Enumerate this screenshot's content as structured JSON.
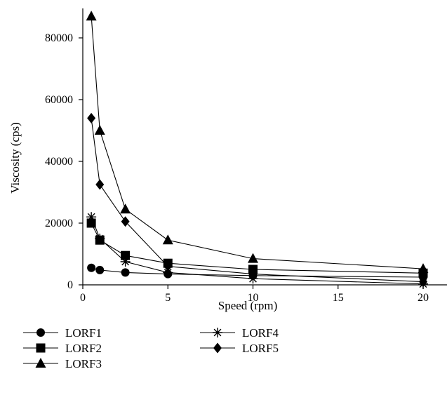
{
  "chart_data": {
    "type": "line",
    "title": "",
    "xlabel": "Speed (rpm)",
    "ylabel": "Viscosity (cps)",
    "xlim": [
      0,
      23
    ],
    "ylim": [
      0,
      88000
    ],
    "xticks": [
      "0",
      "5",
      "10",
      "15",
      "20"
    ],
    "yticks": [
      "0",
      "20000",
      "40000",
      "60000",
      "80000"
    ],
    "grid": false,
    "legend_position": "bottom",
    "x": [
      0.5,
      1,
      2.5,
      5,
      10,
      20
    ],
    "series": [
      {
        "name": "LORF1",
        "marker": "circle",
        "values": [
          5500,
          4800,
          4000,
          3500,
          3000,
          2500
        ]
      },
      {
        "name": "LORF2",
        "marker": "square",
        "values": [
          20000,
          14500,
          9500,
          7000,
          5000,
          3800
        ]
      },
      {
        "name": "LORF3",
        "marker": "triangle",
        "values": [
          87000,
          50000,
          24500,
          14500,
          8500,
          5200
        ]
      },
      {
        "name": "LORF4",
        "marker": "asterisk",
        "values": [
          22000,
          15000,
          7500,
          4000,
          2000,
          300
        ]
      },
      {
        "name": "LORF5",
        "marker": "diamond",
        "values": [
          54000,
          32500,
          20500,
          6000,
          3500,
          1000
        ]
      }
    ],
    "line_color": "#000000"
  }
}
